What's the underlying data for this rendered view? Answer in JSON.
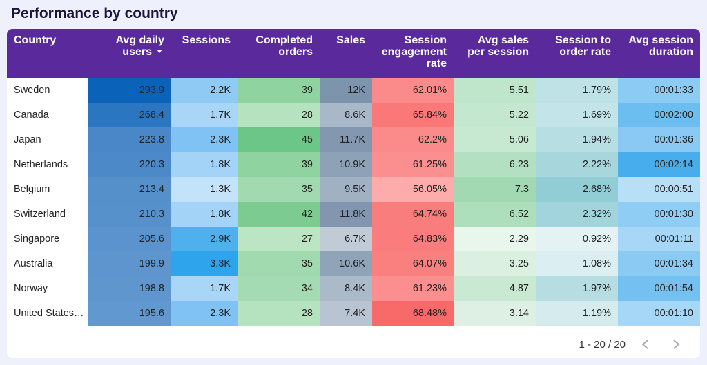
{
  "header": {
    "title": "Performance by country"
  },
  "table": {
    "columns": [
      "Country",
      "Avg daily users",
      "Sessions",
      "Completed orders",
      "Sales",
      "Session engagement rate",
      "Avg sales per session",
      "Session to order rate",
      "Avg session duration"
    ],
    "rows": [
      [
        "Sweden",
        "293.9",
        "2.2K",
        "39",
        "12K",
        "62.01%",
        "5.51",
        "1.79%",
        "00:01:33"
      ],
      [
        "Canada",
        "268.4",
        "1.7K",
        "28",
        "8.6K",
        "65.84%",
        "5.22",
        "1.69%",
        "00:02:00"
      ],
      [
        "Japan",
        "223.8",
        "2.3K",
        "45",
        "11.7K",
        "62.2%",
        "5.06",
        "1.94%",
        "00:01:36"
      ],
      [
        "Netherlands",
        "220.3",
        "1.8K",
        "39",
        "10.9K",
        "61.25%",
        "6.23",
        "2.22%",
        "00:02:14"
      ],
      [
        "Belgium",
        "213.4",
        "1.3K",
        "35",
        "9.5K",
        "56.05%",
        "7.3",
        "2.68%",
        "00:00:51"
      ],
      [
        "Switzerland",
        "210.3",
        "1.8K",
        "42",
        "11.8K",
        "64.74%",
        "6.52",
        "2.32%",
        "00:01:30"
      ],
      [
        "Singapore",
        "205.6",
        "2.9K",
        "27",
        "6.7K",
        "64.83%",
        "2.29",
        "0.92%",
        "00:01:11"
      ],
      [
        "Australia",
        "199.9",
        "3.3K",
        "35",
        "10.6K",
        "64.07%",
        "3.25",
        "1.08%",
        "00:01:34"
      ],
      [
        "Norway",
        "198.8",
        "1.7K",
        "34",
        "8.4K",
        "61.23%",
        "4.87",
        "1.97%",
        "00:01:54"
      ],
      [
        "United States…",
        "195.6",
        "2.3K",
        "28",
        "7.4K",
        "68.48%",
        "3.14",
        "1.19%",
        "00:01:10"
      ]
    ]
  },
  "pagination": {
    "label": "1 - 20 / 20"
  }
}
